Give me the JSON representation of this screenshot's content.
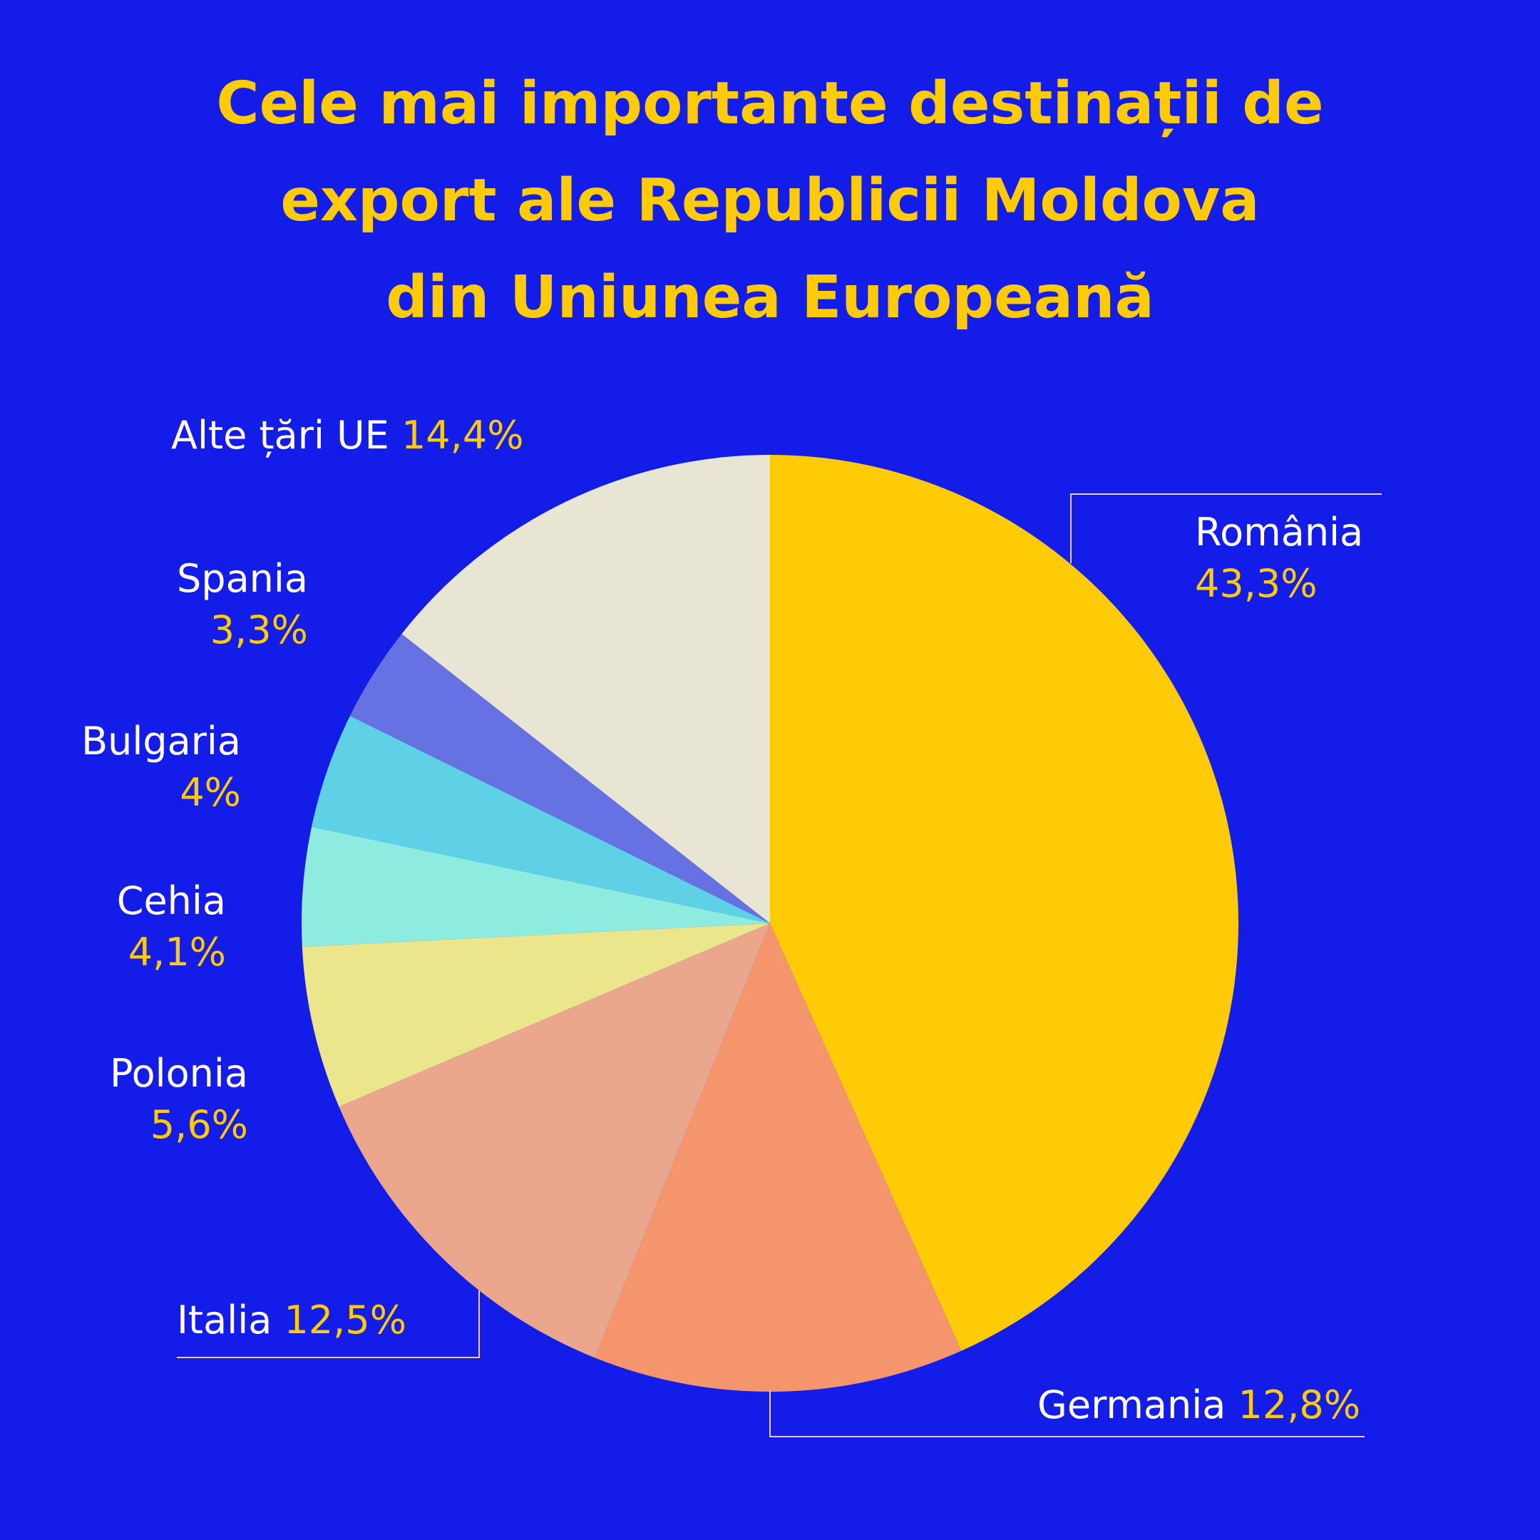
{
  "title_lines": [
    "Cele mai importante destinații de",
    "export ale Republicii Moldova",
    "din Uniunea Europeană"
  ],
  "colors": {
    "background": "#141DE8",
    "accent": "#FFCA06",
    "label_text": "#FFFFFF"
  },
  "chart_data": {
    "type": "pie",
    "start": "12 o'clock",
    "direction": "clockwise",
    "slices": [
      {
        "label": "România",
        "value_text": "43,3%",
        "value": 43.3,
        "color": "#FFCA06"
      },
      {
        "label": "Germania",
        "value_text": "12,8%",
        "value": 12.8,
        "color": "#F5956E"
      },
      {
        "label": "Italia",
        "value_text": "12,5%",
        "value": 12.5,
        "color": "#EBA78E"
      },
      {
        "label": "Polonia",
        "value_text": "5,6%",
        "value": 5.6,
        "color": "#EBE68B"
      },
      {
        "label": "Cehia",
        "value_text": "4,1%",
        "value": 4.1,
        "color": "#8EEBE0"
      },
      {
        "label": "Bulgaria",
        "value_text": "4%",
        "value": 4.0,
        "color": "#5ED1E6"
      },
      {
        "label": "Spania",
        "value_text": "3,3%",
        "value": 3.3,
        "color": "#6672E2"
      },
      {
        "label": "Alte țări UE",
        "value_text": "14,4%",
        "value": 14.4,
        "color": "#E9E5D4"
      }
    ]
  }
}
